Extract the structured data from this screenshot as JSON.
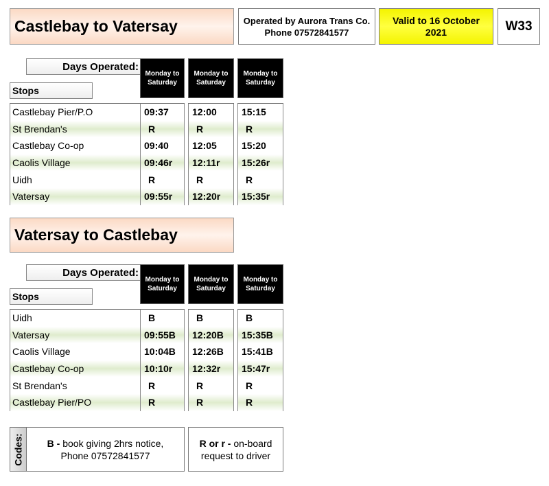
{
  "header": {
    "title": "Castlebay to Vatersay",
    "operator_line1": "Operated by Aurora Trans Co.",
    "operator_line2": "Phone 07572841577",
    "valid": "Valid to 16 October 2021",
    "route": "W33"
  },
  "sections": [
    {
      "title": "Castlebay to Vatersay",
      "days_label": "Days Operated:",
      "stops_label": "Stops",
      "days": [
        "Monday to Saturday",
        "Monday to Saturday",
        "Monday to Saturday"
      ],
      "stops": [
        "Castlebay Pier/P.O",
        "St Brendan's",
        "Castlebay Co-op",
        "Caolis Village",
        "Uidh",
        "Vatersay"
      ],
      "times": [
        [
          "09:37",
          "R",
          "09:40",
          "09:46r",
          "R",
          "09:55r"
        ],
        [
          "12:00",
          "R",
          "12:05",
          "12:11r",
          "R",
          "12:20r"
        ],
        [
          "15:15",
          "R",
          "15:20",
          "15:26r",
          "R",
          "15:35r"
        ]
      ]
    },
    {
      "title": "Vatersay to Castlebay",
      "days_label": "Days Operated:",
      "stops_label": "Stops",
      "days": [
        "Monday to Saturday",
        "Monday to Saturday",
        "Monday to Saturday"
      ],
      "stops": [
        "Uidh",
        "Vatersay",
        "Caolis Village",
        "Castlebay Co-op",
        "St Brendan's",
        "Castlebay Pier/PO"
      ],
      "times": [
        [
          "B",
          "09:55B",
          "10:04B",
          "10:10r",
          "R",
          "R"
        ],
        [
          "B",
          "12:20B",
          "12:26B",
          "12:32r",
          "R",
          "R"
        ],
        [
          "B",
          "15:35B",
          "15:41B",
          "15:47r",
          "R",
          "R"
        ]
      ]
    }
  ],
  "codes": {
    "label": "Codes:",
    "b_code": "B -",
    "b_text": "book giving 2hrs notice,",
    "b_phone": "Phone 07572841577",
    "r_code": "R or r -",
    "r_text": "on-board",
    "r_text2": "request to driver"
  }
}
